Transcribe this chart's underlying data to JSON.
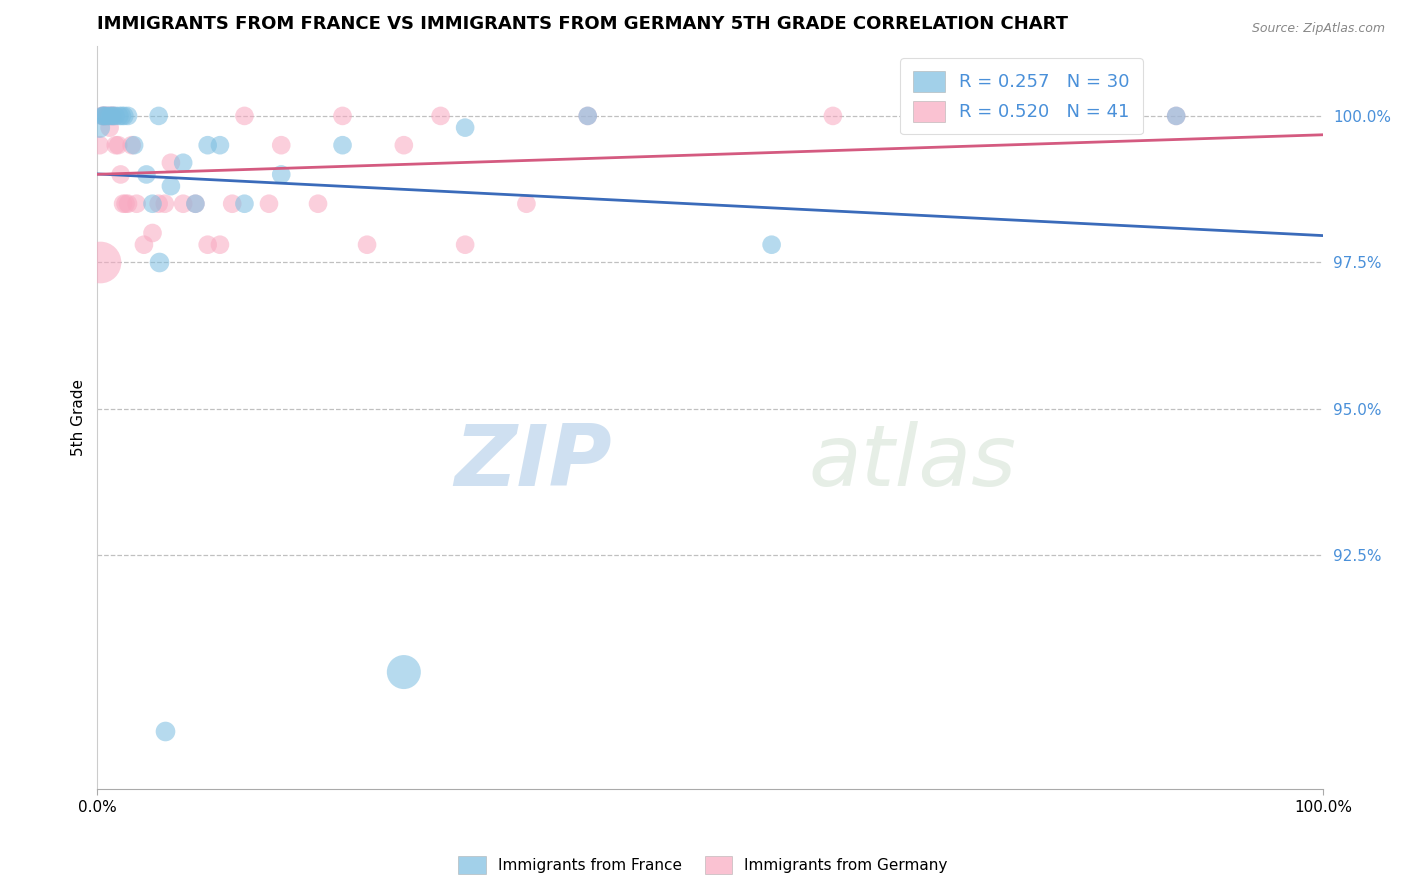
{
  "title": "IMMIGRANTS FROM FRANCE VS IMMIGRANTS FROM GERMANY 5TH GRADE CORRELATION CHART",
  "source": "Source: ZipAtlas.com",
  "ylabel": "5th Grade",
  "xlim": [
    0.0,
    100.0
  ],
  "ylim": [
    88.5,
    101.2
  ],
  "yticks": [
    92.5,
    95.0,
    97.5,
    100.0
  ],
  "ytick_labels": [
    "92.5%",
    "95.0%",
    "97.5%",
    "100.0%"
  ],
  "legend_france_label": "Immigrants from France",
  "legend_germany_label": "Immigrants from Germany",
  "france_R": 0.257,
  "france_N": 30,
  "germany_R": 0.52,
  "germany_N": 41,
  "france_color": "#7bbde0",
  "germany_color": "#f8a8c0",
  "france_line_color": "#3a6bba",
  "germany_line_color": "#d45a80",
  "watermark_zip": "ZIP",
  "watermark_atlas": "atlas",
  "france_x": [
    0.2,
    0.4,
    0.5,
    0.6,
    0.8,
    1.0,
    1.2,
    1.3,
    1.5,
    1.8,
    2.0,
    2.2,
    2.5,
    3.0,
    4.0,
    4.5,
    5.0,
    6.0,
    7.0,
    8.0,
    9.0,
    10.0,
    12.0,
    15.0,
    20.0,
    25.0,
    30.0,
    40.0,
    55.0,
    88.0
  ],
  "france_y": [
    99.8,
    100.0,
    100.0,
    100.0,
    100.0,
    100.0,
    100.0,
    100.0,
    100.0,
    100.0,
    100.0,
    100.0,
    100.0,
    99.5,
    99.0,
    98.5,
    100.0,
    98.8,
    99.2,
    98.5,
    99.5,
    99.5,
    98.5,
    99.0,
    99.5,
    90.5,
    99.8,
    100.0,
    97.8,
    100.0
  ],
  "france_sizes": [
    220,
    180,
    180,
    180,
    180,
    180,
    180,
    180,
    180,
    180,
    180,
    180,
    180,
    180,
    180,
    180,
    180,
    180,
    180,
    180,
    180,
    180,
    180,
    180,
    180,
    600,
    180,
    180,
    180,
    180
  ],
  "germany_x": [
    0.2,
    0.4,
    0.5,
    0.6,
    0.7,
    0.9,
    1.0,
    1.1,
    1.2,
    1.4,
    1.5,
    1.7,
    1.9,
    2.1,
    2.3,
    2.5,
    2.8,
    3.2,
    3.8,
    4.5,
    5.0,
    5.5,
    6.0,
    7.0,
    8.0,
    9.0,
    10.0,
    11.0,
    12.0,
    14.0,
    15.0,
    18.0,
    20.0,
    22.0,
    25.0,
    28.0,
    30.0,
    35.0,
    40.0,
    60.0,
    88.0
  ],
  "germany_y": [
    99.5,
    100.0,
    100.0,
    100.0,
    100.0,
    100.0,
    99.8,
    100.0,
    100.0,
    100.0,
    99.5,
    99.5,
    99.0,
    98.5,
    98.5,
    98.5,
    99.5,
    98.5,
    97.8,
    98.0,
    98.5,
    98.5,
    99.2,
    98.5,
    98.5,
    97.8,
    97.8,
    98.5,
    100.0,
    98.5,
    99.5,
    98.5,
    100.0,
    97.8,
    99.5,
    100.0,
    97.8,
    98.5,
    100.0,
    100.0,
    100.0
  ],
  "germany_sizes": [
    180,
    180,
    180,
    180,
    180,
    180,
    180,
    180,
    180,
    180,
    180,
    180,
    180,
    180,
    180,
    180,
    180,
    180,
    180,
    180,
    180,
    180,
    180,
    180,
    180,
    180,
    180,
    180,
    180,
    180,
    180,
    180,
    180,
    180,
    180,
    180,
    180,
    180,
    180,
    180,
    180
  ],
  "germany_large_x": [
    0.2
  ],
  "germany_large_y": [
    97.5
  ],
  "germany_large_size": [
    900
  ],
  "france_outlier_x": [
    5.0
  ],
  "france_outlier_y": [
    97.5
  ],
  "france_outlier_size": [
    200
  ],
  "france_bottom_x": [
    5.5
  ],
  "france_bottom_y": [
    89.5
  ],
  "france_bottom_size": [
    200
  ]
}
